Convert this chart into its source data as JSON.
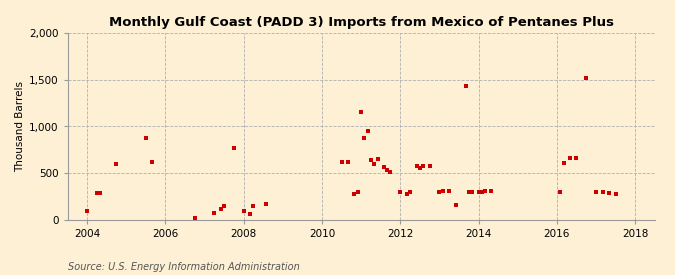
{
  "title": "Monthly Gulf Coast (PADD 3) Imports from Mexico of Pentanes Plus",
  "ylabel": "Thousand Barrels",
  "source": "Source: U.S. Energy Information Administration",
  "background_color": "#fdf0d5",
  "marker_color": "#cc0000",
  "xlim": [
    2003.5,
    2018.5
  ],
  "ylim": [
    0,
    2000
  ],
  "yticks": [
    0,
    500,
    1000,
    1500,
    2000
  ],
  "xticks": [
    2004,
    2006,
    2008,
    2010,
    2012,
    2014,
    2016,
    2018
  ],
  "data_points": [
    [
      2004.0,
      100
    ],
    [
      2004.25,
      290
    ],
    [
      2004.33,
      285
    ],
    [
      2004.75,
      600
    ],
    [
      2005.5,
      880
    ],
    [
      2005.67,
      620
    ],
    [
      2006.75,
      20
    ],
    [
      2007.25,
      75
    ],
    [
      2007.42,
      120
    ],
    [
      2007.5,
      155
    ],
    [
      2007.75,
      770
    ],
    [
      2008.0,
      100
    ],
    [
      2008.17,
      60
    ],
    [
      2008.25,
      155
    ],
    [
      2008.58,
      170
    ],
    [
      2010.5,
      620
    ],
    [
      2010.67,
      620
    ],
    [
      2010.83,
      280
    ],
    [
      2010.92,
      300
    ],
    [
      2011.0,
      1160
    ],
    [
      2011.08,
      880
    ],
    [
      2011.17,
      950
    ],
    [
      2011.25,
      645
    ],
    [
      2011.33,
      595
    ],
    [
      2011.42,
      655
    ],
    [
      2011.58,
      570
    ],
    [
      2011.67,
      540
    ],
    [
      2011.75,
      510
    ],
    [
      2012.0,
      300
    ],
    [
      2012.17,
      280
    ],
    [
      2012.25,
      300
    ],
    [
      2012.42,
      580
    ],
    [
      2012.5,
      560
    ],
    [
      2012.58,
      580
    ],
    [
      2012.75,
      580
    ],
    [
      2013.0,
      300
    ],
    [
      2013.08,
      305
    ],
    [
      2013.25,
      310
    ],
    [
      2013.42,
      160
    ],
    [
      2013.67,
      1430
    ],
    [
      2013.75,
      300
    ],
    [
      2013.83,
      300
    ],
    [
      2014.0,
      300
    ],
    [
      2014.08,
      295
    ],
    [
      2014.17,
      305
    ],
    [
      2014.33,
      310
    ],
    [
      2016.08,
      300
    ],
    [
      2016.17,
      610
    ],
    [
      2016.33,
      660
    ],
    [
      2016.5,
      660
    ],
    [
      2016.75,
      1520
    ],
    [
      2017.0,
      300
    ],
    [
      2017.17,
      300
    ],
    [
      2017.33,
      290
    ],
    [
      2017.5,
      280
    ]
  ]
}
